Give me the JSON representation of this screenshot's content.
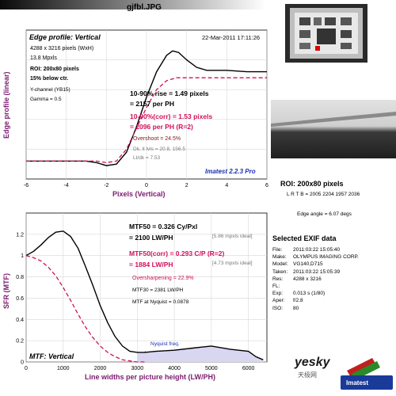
{
  "header": {
    "filename": "gjfbl.JPG"
  },
  "panel1": {
    "title": "Edge profile: Vertical",
    "timestamp": "22-Mar-2011 17:11:26",
    "img_size": "4288 x 3216 pixels (WxH)",
    "mpxls": "13.8 Mpxls",
    "roi": "ROI: 200x80 pixels",
    "below": "15% below ctr.",
    "channel": "Y-channel (YB15)",
    "gamma": "Gamma = 0.5",
    "rise_line1": "10-90% rise = 1.49 pixels",
    "rise_line2": "= 2157 per PH",
    "corr_line1": "10-90%(corr) = 1.53 pixels",
    "corr_line2": "= 2096 per PH  (R=2)",
    "overshoot": "Overshoot = 24.5%",
    "dk": "Dk, lt lvls = 20.8, 156.5",
    "ltdk": "Lt/dk = 7.53",
    "brand": "Imatest 2.2.3 Pro"
  },
  "panel2": {
    "mtf50_line1": "MTF50 = 0.326 Cy/Pxl",
    "mtf50_line2": "= 2100 LW/PH",
    "mtf50_ideal": "[5.86 mpxls ideal]",
    "corr_line1": "MTF50(corr) = 0.293 C/P  (R=2)",
    "corr_line2": "= 1884 LW/PH",
    "corr_ideal": "[4.73 mpxls ideal]",
    "oversharp": "Oversharpening = 22.9%",
    "mtf30": "MTF30 = 2381 LW/PH",
    "nyquist_mtf": "MTF at Nyquist = 0.0878",
    "nyquist_label": "Nyquist freq.",
    "title": "MTF: Vertical"
  },
  "right": {
    "roi_title": "ROI: 200x80 pixels",
    "roi_coords": "L R T B = 2005 2204  1957 2036",
    "edge_angle": "Edge angle = 6.07 degs",
    "exif_title": "Selected EXIF data",
    "exif": [
      {
        "k": "File:",
        "v": "2011:03:22 15:05:40"
      },
      {
        "k": "Make:",
        "v": "OLYMPUS IMAGING CORP."
      },
      {
        "k": "Model:",
        "v": "VG140,D715"
      },
      {
        "k": "Taken:",
        "v": "2011:03:22 15:05:39"
      },
      {
        "k": "Res:",
        "v": "4288 x 3216"
      },
      {
        "k": "FL:",
        "v": ""
      },
      {
        "k": "Exp:",
        "v": "0.013 s  (1/80)"
      },
      {
        "k": "Aper:",
        "v": "f/2.8"
      },
      {
        "k": "ISO:",
        "v": "80"
      }
    ],
    "watermark_site": "yesky",
    "watermark_cn": "天极网",
    "watermark_brand": "Imatest"
  },
  "colors": {
    "purple": "#7a1a6e",
    "magenta": "#d0105a",
    "blue": "#1a2fb0"
  },
  "chart_data": [
    {
      "type": "line",
      "title": "Edge profile: Vertical",
      "xlabel": "Pixels (Vertical)",
      "ylabel": "Edge profile (linear)",
      "xlim": [
        -6,
        6
      ],
      "ylim": [
        0,
        1
      ],
      "xticks": [
        "-6",
        "-4",
        "-2",
        "0",
        "2",
        "4",
        "6"
      ],
      "grid": true,
      "series": [
        {
          "line": "solid-black",
          "x": [
            -6,
            -5,
            -4,
            -3,
            -2.5,
            -2,
            -1.5,
            -1,
            -0.5,
            0,
            0.5,
            1,
            1.3,
            1.6,
            2,
            2.5,
            3,
            3.5,
            4,
            5,
            6
          ],
          "y": [
            0.12,
            0.12,
            0.12,
            0.12,
            0.11,
            0.09,
            0.1,
            0.18,
            0.35,
            0.55,
            0.72,
            0.83,
            0.86,
            0.85,
            0.8,
            0.75,
            0.73,
            0.73,
            0.73,
            0.72,
            0.72
          ]
        },
        {
          "line": "dashed-magenta",
          "x": [
            -6,
            -4,
            -3,
            -2.5,
            -2,
            -1.5,
            -1,
            -0.5,
            0,
            0.5,
            1,
            1.5,
            2,
            2.5,
            3,
            4,
            5,
            6
          ],
          "y": [
            0.12,
            0.12,
            0.12,
            0.12,
            0.11,
            0.12,
            0.2,
            0.34,
            0.48,
            0.6,
            0.66,
            0.68,
            0.68,
            0.68,
            0.68,
            0.68,
            0.68,
            0.68
          ]
        }
      ]
    },
    {
      "type": "line",
      "title": "MTF: Vertical",
      "xlabel": "Line widths per picture height (LW/PH)",
      "ylabel": "SFR (MTF)",
      "xlim": [
        0,
        6500
      ],
      "ylim": [
        0,
        1.4
      ],
      "xticks": [
        "0",
        "1000",
        "2000",
        "3000",
        "4000",
        "5000",
        "6000"
      ],
      "yticks": [
        "0",
        "0.2",
        "0.4",
        "0.6",
        "0.8",
        "1",
        "1.2"
      ],
      "nyquist_x": 3216,
      "grid": true,
      "series": [
        {
          "line": "solid-black",
          "x": [
            0,
            200,
            400,
            600,
            800,
            1000,
            1200,
            1400,
            1600,
            1800,
            2000,
            2200,
            2400,
            2600,
            2800,
            3000,
            3200,
            3500,
            4000,
            4500,
            5000,
            5500,
            6000,
            6200,
            6400
          ],
          "y": [
            1.0,
            1.04,
            1.1,
            1.17,
            1.22,
            1.23,
            1.18,
            1.07,
            0.9,
            0.72,
            0.53,
            0.37,
            0.24,
            0.15,
            0.1,
            0.09,
            0.09,
            0.1,
            0.11,
            0.13,
            0.15,
            0.12,
            0.1,
            0.05,
            0.02
          ]
        },
        {
          "line": "dashed-magenta",
          "x": [
            0,
            200,
            400,
            600,
            800,
            1000,
            1200,
            1400,
            1600,
            1800,
            2000,
            2200,
            2400,
            2600,
            2800,
            3000,
            3200
          ],
          "y": [
            1.0,
            0.98,
            0.95,
            0.89,
            0.81,
            0.7,
            0.58,
            0.45,
            0.33,
            0.23,
            0.15,
            0.09,
            0.05,
            0.02,
            0.01,
            0.0,
            0.0
          ]
        }
      ]
    }
  ]
}
